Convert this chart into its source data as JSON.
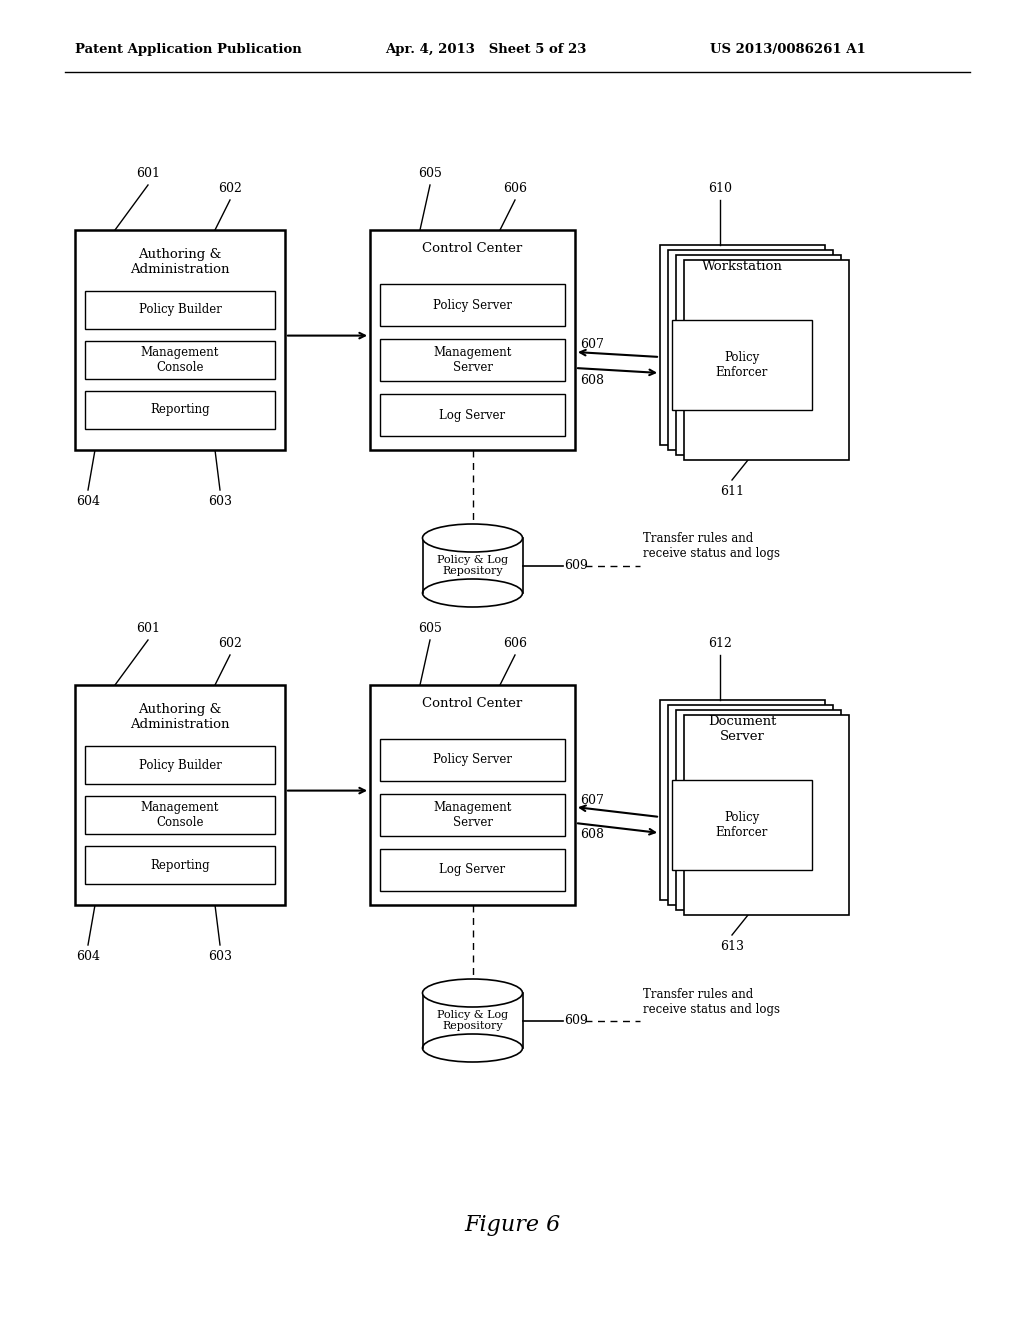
{
  "bg_color": "#ffffff",
  "header_left": "Patent Application Publication",
  "header_middle": "Apr. 4, 2013   Sheet 5 of 23",
  "header_right": "US 2013/0086261 A1",
  "figure_label": "Figure 6"
}
